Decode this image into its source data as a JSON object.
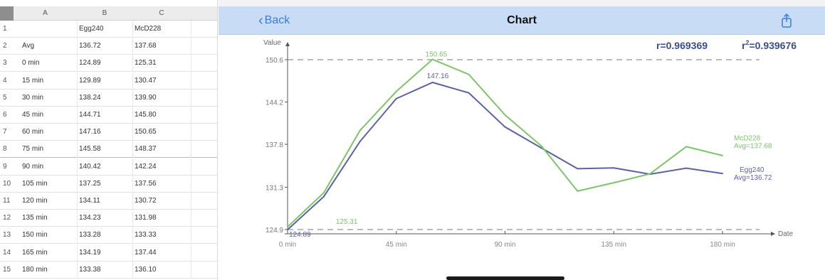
{
  "sheet": {
    "columns": [
      "A",
      "B",
      "C"
    ],
    "rows": [
      {
        "num": "1",
        "label": "",
        "b": "Egg240",
        "c": "McD228"
      },
      {
        "num": "2",
        "label": "Avg",
        "b": "136.72",
        "c": "137.68"
      },
      {
        "num": "3",
        "label": "0 min",
        "b": "124.89",
        "c": "125.31"
      },
      {
        "num": "4",
        "label": "15 min",
        "b": "129.89",
        "c": "130.47"
      },
      {
        "num": "5",
        "label": "30 min",
        "b": "138.24",
        "c": "139.90"
      },
      {
        "num": "6",
        "label": "45 min",
        "b": "144.71",
        "c": "145.80"
      },
      {
        "num": "7",
        "label": "60 min",
        "b": "147.16",
        "c": "150.65"
      },
      {
        "num": "8",
        "label": "75 min",
        "b": "145.58",
        "c": "148.37"
      },
      {
        "num": "9",
        "label": "90 min",
        "b": "140.42",
        "c": "142.24"
      },
      {
        "num": "10",
        "label": "105 min",
        "b": "137.25",
        "c": "137.56"
      },
      {
        "num": "11",
        "label": "120 min",
        "b": "134.11",
        "c": "130.72"
      },
      {
        "num": "12",
        "label": "135 min",
        "b": "134.23",
        "c": "131.98"
      },
      {
        "num": "13",
        "label": "150 min",
        "b": "133.28",
        "c": "133.33"
      },
      {
        "num": "14",
        "label": "165 min",
        "b": "134.19",
        "c": "137.44"
      },
      {
        "num": "15",
        "label": "180 min",
        "b": "133.38",
        "c": "136.10"
      }
    ]
  },
  "nav": {
    "back_label": "Back",
    "title": "Chart",
    "share_icon": "share-icon"
  },
  "stats": {
    "r_text": "r=0.969369",
    "r2_prefix": "r",
    "r2_sup": "2",
    "r2_value": "=0.939676"
  },
  "chart_data": {
    "type": "line",
    "ylabel": "Value",
    "xlabel": "Date",
    "x": [
      0,
      15,
      30,
      45,
      60,
      75,
      90,
      105,
      120,
      135,
      150,
      165,
      180
    ],
    "xlim": [
      0,
      180
    ],
    "x_ticks": [
      0,
      45,
      90,
      135,
      180
    ],
    "x_tick_labels": [
      "0 min",
      "45 min",
      "90 min",
      "135 min",
      "180 min"
    ],
    "ylim": [
      124.9,
      150.6
    ],
    "y_ticks": [
      124.9,
      131.3,
      137.8,
      144.2,
      150.6
    ],
    "y_tick_labels": [
      "124.9",
      "131.3",
      "137.8",
      "144.2",
      "150.6"
    ],
    "reference_lines": [
      150.6,
      124.9
    ],
    "series": [
      {
        "name": "Egg240",
        "avg_label": "Avg=136.72",
        "color": "#5a62a6",
        "values": [
          124.89,
          129.89,
          138.24,
          144.71,
          147.16,
          145.58,
          140.42,
          137.25,
          134.11,
          134.23,
          133.28,
          134.19,
          133.38
        ],
        "max_label": "147.16",
        "min_label": "124.89"
      },
      {
        "name": "McD228",
        "avg_label": "Avg=137.68",
        "color": "#7dc46a",
        "values": [
          125.31,
          130.47,
          139.9,
          145.8,
          150.65,
          148.37,
          142.24,
          137.56,
          130.72,
          131.98,
          133.33,
          137.44,
          136.1
        ],
        "max_label": "150.65",
        "min_label": "125.31"
      }
    ]
  },
  "colors": {
    "nav_bg": "#c9dcf5",
    "accent": "#3a7ce0",
    "egg": "#5a62a6",
    "mcd": "#7dc46a",
    "stats_text": "#3b4d8a"
  }
}
